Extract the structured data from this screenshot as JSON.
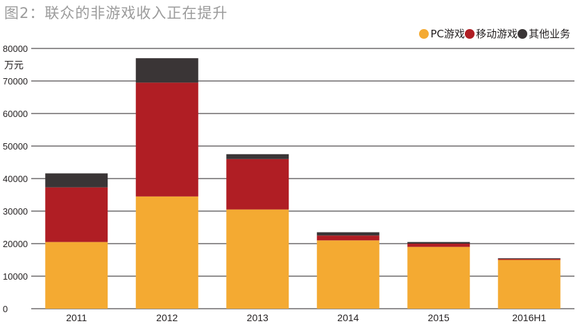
{
  "title": "图2：联众的非游戏收入正在提升",
  "chart_data": {
    "type": "bar",
    "stacked": true,
    "title": "图2：联众的非游戏收入正在提升",
    "ylabel": "万元",
    "xlabel": "",
    "ylim": [
      0,
      80000
    ],
    "yticks": [
      0,
      10000,
      20000,
      30000,
      40000,
      50000,
      60000,
      70000,
      80000
    ],
    "ytick_labels": [
      "0",
      "10000",
      "20000",
      "30000",
      "40000",
      "50000",
      "60000",
      "70000",
      "80000"
    ],
    "categories": [
      "2011",
      "2012",
      "2013",
      "2014",
      "2015",
      "2016H1"
    ],
    "grid": true,
    "legend_position": "top-right",
    "series": [
      {
        "name": "PC游戏",
        "color": "#f4aa32",
        "values": [
          20500,
          34500,
          30500,
          21000,
          19000,
          15000
        ]
      },
      {
        "name": "移动游戏",
        "color": "#b01e24",
        "values": [
          16800,
          35000,
          15500,
          1500,
          1000,
          300
        ]
      },
      {
        "name": "其他业务",
        "color": "#3a3536",
        "values": [
          4300,
          7500,
          1500,
          1000,
          500,
          200
        ]
      }
    ]
  },
  "colors": {
    "grid": "#231f20",
    "axis_text": "#231f20",
    "title": "#9b9b9b"
  }
}
